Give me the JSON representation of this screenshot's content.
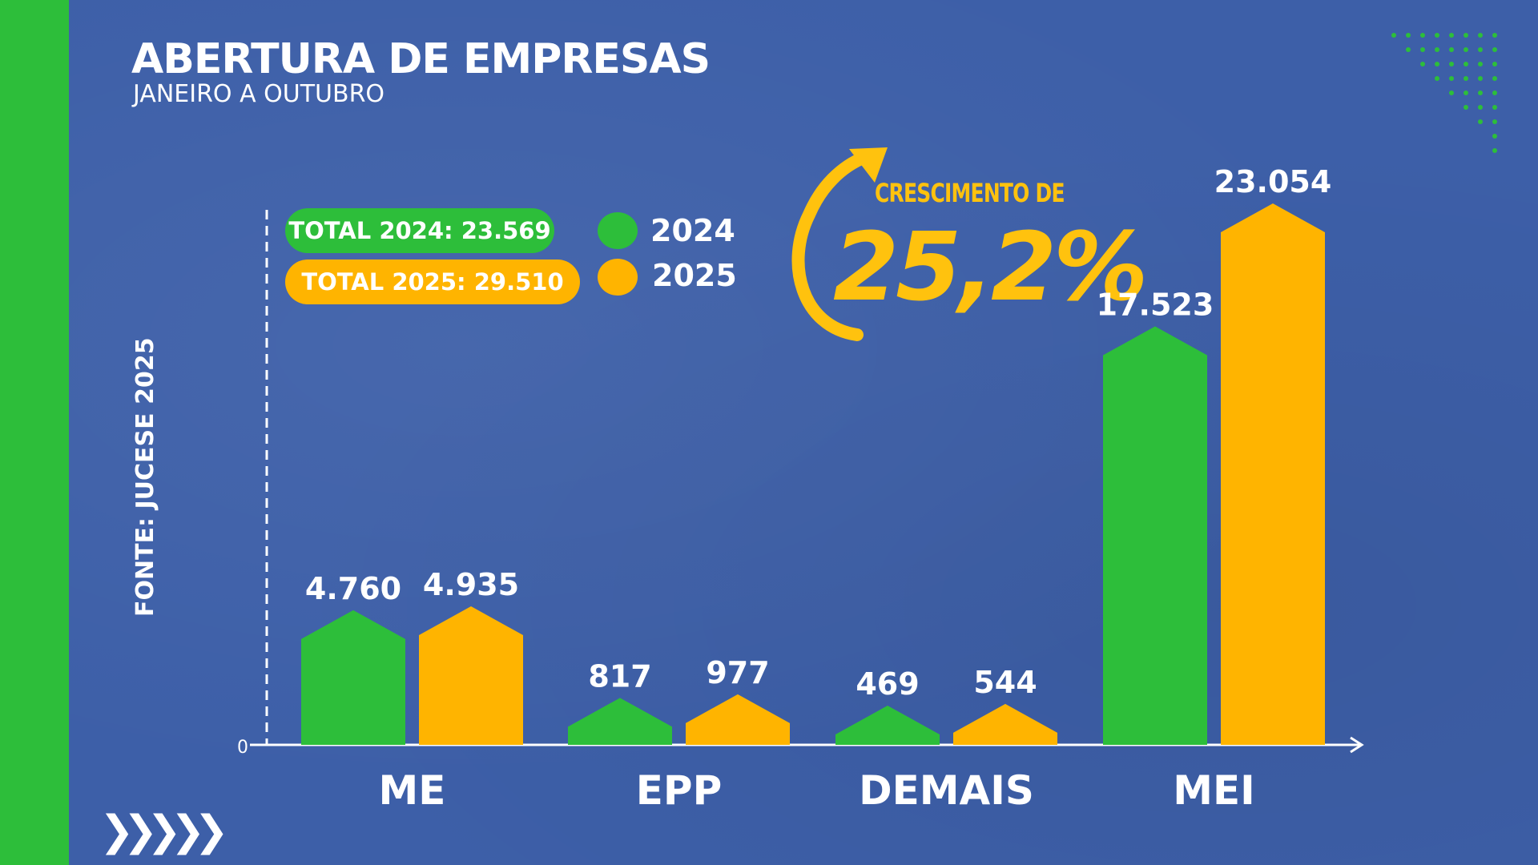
{
  "title": "ABERTURA DE EMPRESAS",
  "subtitle": "JANEIRO A OUTUBRO",
  "source": "FONTE: JUCESE 2025",
  "totals": {
    "t2024": "TOTAL 2024: 23.569",
    "t2025": "TOTAL 2025: 29.510"
  },
  "growth": {
    "label": "CRESCIMENTO DE",
    "value": "25,2%"
  },
  "colors": {
    "green": "#2dbe3a",
    "yellow": "#ffb400",
    "background": "#3d5fa8",
    "accent_text": "#ffc20e"
  },
  "chart_data": {
    "type": "bar",
    "title": "ABERTURA DE EMPRESAS",
    "subtitle": "JANEIRO A OUTUBRO",
    "xlabel": "",
    "ylabel": "",
    "ylim": [
      0,
      23054
    ],
    "y_tick_labels": [
      "0"
    ],
    "categories": [
      "ME",
      "EPP",
      "DEMAIS",
      "MEI"
    ],
    "series": [
      {
        "name": "2024",
        "color": "#2dbe3a",
        "values": [
          4760,
          817,
          469,
          17523
        ],
        "labels": [
          "4.760",
          "817",
          "469",
          "17.523"
        ]
      },
      {
        "name": "2025",
        "color": "#ffb400",
        "values": [
          4935,
          977,
          544,
          23054
        ],
        "labels": [
          "4.935",
          "977",
          "544",
          "23.054"
        ]
      }
    ],
    "legend": [
      "2024",
      "2025"
    ]
  }
}
